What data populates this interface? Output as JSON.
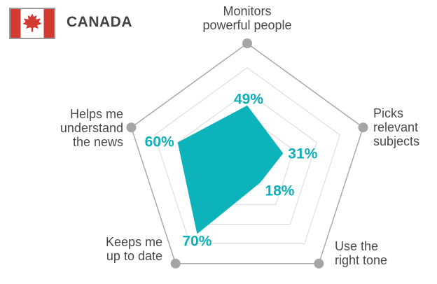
{
  "header": {
    "country": "CANADA",
    "flag": {
      "red": "#d23a32",
      "white": "#ffffff",
      "border": "#9b9b9b"
    }
  },
  "chart_data": {
    "type": "radar",
    "title": "CANADA",
    "max": 100,
    "rings_percent": [
      20,
      40,
      60,
      80,
      100
    ],
    "grid": true,
    "legend_position": "none",
    "axes": [
      {
        "label": "Monitors\npowerful people",
        "value": 49,
        "value_label": "49%"
      },
      {
        "label": "Picks\nrelevant\nsubjects",
        "value": 31,
        "value_label": "31%"
      },
      {
        "label": "Use the\nright tone",
        "value": 18,
        "value_label": "18%"
      },
      {
        "label": "Keeps me\nup to date",
        "value": 70,
        "value_label": "70%"
      },
      {
        "label": "Helps me\nunderstand\nthe news",
        "value": 60,
        "value_label": "60%"
      }
    ],
    "colors": {
      "series_fill": "#0db3ba",
      "value_text": "#0cb0b8",
      "outer_ring": "#a9a9a9",
      "inner_ring": "#d9d9d9",
      "vertex_dot": "#a5a5a5",
      "axis_label_text": "#4a4a4c"
    }
  }
}
